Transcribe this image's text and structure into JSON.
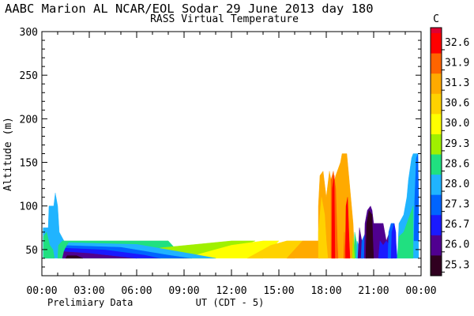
{
  "title": "AABC Marion AL  NCAR/EOL Sodar  29 June 2013  day 180",
  "subtitle": "RASS Virtual Temperature",
  "footer_left": "Prelimiary Data",
  "chart_data": {
    "type": "heatmap",
    "title": "AABC Marion AL  NCAR/EOL Sodar  29 June 2013  day 180",
    "subtitle": "RASS Virtual Temperature",
    "xlabel": "UT  (CDT - 5)",
    "ylabel": "Altitude (m)",
    "xlim": [
      0,
      24
    ],
    "ylim": [
      20,
      300
    ],
    "x_tick_labels": [
      "00:00",
      "03:00",
      "06:00",
      "09:00",
      "12:00",
      "15:00",
      "18:00",
      "21:00",
      "00:00"
    ],
    "x_ticks": [
      0,
      3,
      6,
      9,
      12,
      15,
      18,
      21,
      24
    ],
    "y_ticks": [
      50,
      100,
      150,
      200,
      250,
      300
    ],
    "y_tick_labels": [
      "50",
      "100",
      "150",
      "200",
      "250",
      "300"
    ],
    "colorbar": {
      "unit": "C",
      "levels": [
        "32.6",
        "31.9",
        "31.3",
        "30.6",
        "30.0",
        "29.3",
        "28.6",
        "28.0",
        "27.3",
        "26.7",
        "26.0",
        "25.3"
      ],
      "colors": [
        "#ff0000",
        "#ff6400",
        "#ffaa00",
        "#ffd200",
        "#ffff00",
        "#a0f000",
        "#20e080",
        "#20b4ff",
        "#0064ff",
        "#1a1aff",
        "#500090",
        "#300020"
      ],
      "top_color": "#e00030"
    },
    "regions": [
      {
        "color": "#20b4ff",
        "poly": [
          [
            0.08,
            40
          ],
          [
            0.08,
            75
          ],
          [
            0.4,
            75
          ],
          [
            0.45,
            100
          ],
          [
            0.75,
            100
          ],
          [
            0.85,
            115
          ],
          [
            1.0,
            100
          ],
          [
            1.1,
            70
          ],
          [
            1.4,
            60
          ],
          [
            1.5,
            40
          ]
        ]
      },
      {
        "color": "#20e080",
        "poly": [
          [
            0.1,
            40
          ],
          [
            0.1,
            65
          ],
          [
            0.3,
            70
          ],
          [
            0.5,
            55
          ],
          [
            0.7,
            50
          ],
          [
            0.8,
            40
          ]
        ]
      },
      {
        "color": "#20e080",
        "poly": [
          [
            1.0,
            40
          ],
          [
            1.05,
            55
          ],
          [
            1.3,
            60
          ],
          [
            8.0,
            60
          ],
          [
            9.0,
            40
          ]
        ]
      },
      {
        "color": "#a0f000",
        "poly": [
          [
            6.0,
            40
          ],
          [
            7.5,
            52
          ],
          [
            12.0,
            60
          ],
          [
            13.5,
            60
          ],
          [
            11.0,
            40
          ]
        ]
      },
      {
        "color": "#ffff00",
        "poly": [
          [
            9.0,
            40
          ],
          [
            12.0,
            55
          ],
          [
            14.0,
            60
          ],
          [
            15.0,
            60
          ],
          [
            14.0,
            40
          ]
        ]
      },
      {
        "color": "#ffd200",
        "poly": [
          [
            13.0,
            40
          ],
          [
            14.5,
            55
          ],
          [
            15.5,
            60
          ],
          [
            16.5,
            60
          ],
          [
            16.0,
            40
          ]
        ]
      },
      {
        "color": "#ffaa00",
        "poly": [
          [
            15.5,
            40
          ],
          [
            16.5,
            60
          ],
          [
            17.5,
            60
          ],
          [
            17.6,
            40
          ]
        ]
      },
      {
        "color": "#ffaa00",
        "poly": [
          [
            17.5,
            40
          ],
          [
            17.5,
            100
          ],
          [
            17.6,
            135
          ],
          [
            17.8,
            140
          ],
          [
            18.0,
            110
          ],
          [
            18.2,
            140
          ],
          [
            18.4,
            120
          ],
          [
            18.6,
            135
          ],
          [
            18.9,
            150
          ],
          [
            19.0,
            160
          ],
          [
            19.3,
            160
          ],
          [
            19.5,
            120
          ],
          [
            19.7,
            80
          ],
          [
            19.8,
            40
          ]
        ]
      },
      {
        "color": "#ffd200",
        "poly": [
          [
            17.5,
            40
          ],
          [
            17.5,
            70
          ],
          [
            17.7,
            110
          ],
          [
            17.9,
            90
          ],
          [
            18.0,
            60
          ],
          [
            18.1,
            40
          ]
        ]
      },
      {
        "color": "#ff6400",
        "poly": [
          [
            18.3,
            40
          ],
          [
            18.3,
            130
          ],
          [
            18.45,
            140
          ],
          [
            18.6,
            120
          ],
          [
            18.7,
            60
          ],
          [
            18.75,
            40
          ]
        ]
      },
      {
        "color": "#ff0000",
        "poly": [
          [
            18.35,
            40
          ],
          [
            18.38,
            120
          ],
          [
            18.5,
            135
          ],
          [
            18.55,
            40
          ]
        ]
      },
      {
        "color": "#ff0000",
        "poly": [
          [
            19.2,
            40
          ],
          [
            19.25,
            100
          ],
          [
            19.35,
            110
          ],
          [
            19.45,
            60
          ],
          [
            19.5,
            40
          ]
        ]
      },
      {
        "color": "#ff6400",
        "poly": [
          [
            19.1,
            40
          ],
          [
            19.15,
            70
          ],
          [
            19.2,
            40
          ]
        ]
      },
      {
        "color": "#20e080",
        "poly": [
          [
            19.75,
            40
          ],
          [
            19.8,
            70
          ],
          [
            19.9,
            60
          ],
          [
            20.0,
            40
          ]
        ]
      },
      {
        "color": "#a0f000",
        "poly": [
          [
            19.65,
            40
          ],
          [
            19.7,
            65
          ],
          [
            19.8,
            40
          ]
        ]
      },
      {
        "color": "#20b4ff",
        "poly": [
          [
            19.9,
            40
          ],
          [
            19.95,
            60
          ],
          [
            20.05,
            55
          ],
          [
            20.1,
            40
          ]
        ]
      },
      {
        "color": "#500090",
        "poly": [
          [
            20.0,
            40
          ],
          [
            20.1,
            75
          ],
          [
            20.2,
            65
          ],
          [
            20.3,
            55
          ],
          [
            20.35,
            40
          ]
        ]
      },
      {
        "color": "#0064ff",
        "poly": [
          [
            20.2,
            40
          ],
          [
            20.25,
            60
          ],
          [
            20.5,
            70
          ],
          [
            20.55,
            40
          ]
        ]
      },
      {
        "color": "#500090",
        "poly": [
          [
            20.4,
            40
          ],
          [
            20.45,
            80
          ],
          [
            20.6,
            95
          ],
          [
            20.8,
            100
          ],
          [
            20.9,
            95
          ],
          [
            21.0,
            80
          ],
          [
            21.2,
            80
          ],
          [
            21.6,
            80
          ],
          [
            21.7,
            70
          ],
          [
            21.8,
            60
          ],
          [
            22.0,
            70
          ],
          [
            22.2,
            80
          ],
          [
            22.3,
            60
          ],
          [
            22.2,
            40
          ]
        ]
      },
      {
        "color": "#300020",
        "poly": [
          [
            20.5,
            40
          ],
          [
            20.55,
            80
          ],
          [
            20.7,
            95
          ],
          [
            20.9,
            90
          ],
          [
            20.95,
            60
          ],
          [
            21.0,
            40
          ]
        ]
      },
      {
        "color": "#1a1aff",
        "poly": [
          [
            21.3,
            40
          ],
          [
            21.4,
            60
          ],
          [
            21.6,
            55
          ],
          [
            21.8,
            60
          ],
          [
            22.0,
            55
          ],
          [
            22.0,
            40
          ]
        ]
      },
      {
        "color": "#0064ff",
        "poly": [
          [
            21.9,
            40
          ],
          [
            21.95,
            70
          ],
          [
            22.1,
            80
          ],
          [
            22.3,
            80
          ],
          [
            22.4,
            60
          ],
          [
            22.5,
            40
          ]
        ]
      },
      {
        "color": "#1a1aff",
        "poly": [
          [
            22.1,
            40
          ],
          [
            22.15,
            70
          ],
          [
            22.3,
            80
          ],
          [
            22.4,
            70
          ],
          [
            22.45,
            40
          ]
        ]
      },
      {
        "color": "#20b4ff",
        "poly": [
          [
            22.5,
            40
          ],
          [
            22.6,
            80
          ],
          [
            22.9,
            90
          ],
          [
            23.1,
            110
          ],
          [
            23.2,
            130
          ],
          [
            23.4,
            155
          ],
          [
            23.5,
            160
          ],
          [
            23.8,
            160
          ],
          [
            23.85,
            40
          ]
        ]
      },
      {
        "color": "#0064ff",
        "poly": [
          [
            23.55,
            60
          ],
          [
            23.6,
            110
          ],
          [
            23.7,
            155
          ],
          [
            23.8,
            160
          ],
          [
            23.85,
            110
          ],
          [
            23.85,
            60
          ]
        ]
      },
      {
        "color": "#20e080",
        "poly": [
          [
            22.5,
            40
          ],
          [
            22.6,
            65
          ],
          [
            22.9,
            70
          ],
          [
            23.3,
            90
          ],
          [
            23.5,
            100
          ],
          [
            23.5,
            40
          ]
        ]
      }
    ],
    "bands_bottom": [
      {
        "color": "#500090",
        "poly": [
          [
            1.3,
            40
          ],
          [
            1.4,
            48
          ],
          [
            3.0,
            46
          ],
          [
            5.0,
            42
          ],
          [
            6.0,
            40
          ]
        ]
      },
      {
        "color": "#1a1aff",
        "poly": [
          [
            1.4,
            48
          ],
          [
            1.5,
            52
          ],
          [
            4.0,
            50
          ],
          [
            6.5,
            44
          ],
          [
            7.5,
            40
          ],
          [
            6.0,
            40
          ],
          [
            5.0,
            42
          ],
          [
            3.0,
            46
          ]
        ]
      },
      {
        "color": "#0064ff",
        "poly": [
          [
            1.5,
            52
          ],
          [
            1.6,
            55
          ],
          [
            5.0,
            53
          ],
          [
            8.0,
            44
          ],
          [
            9.5,
            40
          ],
          [
            7.5,
            40
          ],
          [
            6.5,
            44
          ],
          [
            4.0,
            50
          ]
        ]
      },
      {
        "color": "#20b4ff",
        "poly": [
          [
            1.6,
            55
          ],
          [
            1.7,
            58
          ],
          [
            6.0,
            56
          ],
          [
            9.5,
            45
          ],
          [
            11.0,
            40
          ],
          [
            9.5,
            40
          ],
          [
            8.0,
            44
          ],
          [
            5.0,
            53
          ]
        ]
      },
      {
        "color": "#300020",
        "poly": [
          [
            1.5,
            40
          ],
          [
            1.6,
            43
          ],
          [
            2.2,
            43
          ],
          [
            2.6,
            40
          ]
        ]
      }
    ]
  }
}
